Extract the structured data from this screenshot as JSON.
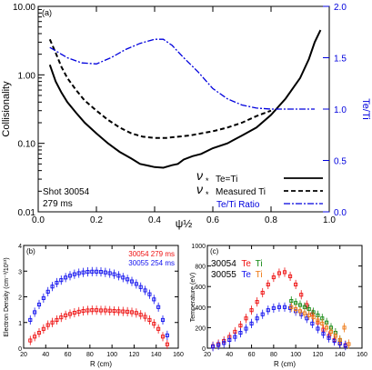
{
  "chart_data": [
    {
      "type": "line",
      "panel_label": "(a)",
      "xlabel": "ψ½",
      "ylabel": "Collisionality",
      "y2label": "Te/Ti",
      "yscale": "log",
      "xlim": [
        0.0,
        1.0
      ],
      "ylim": [
        0.01,
        10.0
      ],
      "y2lim": [
        0.0,
        2.0
      ],
      "x_ticks": [
        "0.0",
        "0.2",
        "0.4",
        "0.6",
        "0.8",
        "1.0"
      ],
      "y_ticks": [
        "0.01",
        "0.10",
        "1.00",
        "10.00"
      ],
      "y2_ticks": [
        "0.0",
        "0.5",
        "1.0",
        "1.5",
        "2.0"
      ],
      "annotation": [
        "Shot 30054",
        "279 ms"
      ],
      "legend_position": "bottom-right",
      "series": [
        {
          "name": "ν* Te=Ti",
          "color": "#000000",
          "axis": "left",
          "style": "solid",
          "x": [
            0.04,
            0.06,
            0.08,
            0.1,
            0.13,
            0.16,
            0.2,
            0.24,
            0.28,
            0.32,
            0.35,
            0.38,
            0.4,
            0.43,
            0.46,
            0.48,
            0.5,
            0.53,
            0.56,
            0.6,
            0.65,
            0.7,
            0.75,
            0.8,
            0.85,
            0.9,
            0.93,
            0.95,
            0.97
          ],
          "y": [
            1.4,
            0.8,
            0.55,
            0.4,
            0.28,
            0.2,
            0.14,
            0.1,
            0.075,
            0.06,
            0.05,
            0.047,
            0.045,
            0.044,
            0.048,
            0.05,
            0.058,
            0.065,
            0.07,
            0.085,
            0.1,
            0.13,
            0.17,
            0.26,
            0.45,
            0.9,
            1.7,
            3.0,
            4.5
          ]
        },
        {
          "name": "ν* Measured Ti",
          "color": "#000000",
          "axis": "left",
          "style": "dashed",
          "x": [
            0.04,
            0.06,
            0.08,
            0.1,
            0.13,
            0.16,
            0.2,
            0.24,
            0.28,
            0.32,
            0.36,
            0.4,
            0.44,
            0.48,
            0.52,
            0.56,
            0.6,
            0.65,
            0.7,
            0.75,
            0.8
          ],
          "y": [
            3.3,
            2.1,
            1.3,
            0.9,
            0.6,
            0.42,
            0.3,
            0.22,
            0.17,
            0.14,
            0.125,
            0.12,
            0.12,
            0.125,
            0.13,
            0.14,
            0.15,
            0.17,
            0.2,
            0.25,
            0.3
          ]
        },
        {
          "name": "Te/Ti Ratio",
          "color": "#0000dd",
          "axis": "right",
          "style": "dashdot",
          "x": [
            0.04,
            0.07,
            0.1,
            0.15,
            0.2,
            0.25,
            0.3,
            0.35,
            0.4,
            0.43,
            0.46,
            0.5,
            0.55,
            0.6,
            0.65,
            0.7,
            0.75,
            0.8,
            0.85,
            0.9,
            0.95
          ],
          "y": [
            1.6,
            1.55,
            1.5,
            1.45,
            1.44,
            1.5,
            1.58,
            1.64,
            1.68,
            1.68,
            1.62,
            1.5,
            1.36,
            1.2,
            1.1,
            1.04,
            1.01,
            1.0,
            1.0,
            1.0,
            1.0
          ]
        }
      ]
    },
    {
      "type": "scatter",
      "panel_label": "(b)",
      "xlabel": "R (cm)",
      "ylabel": "Electron Density (cm⁻³/10¹³)",
      "xlim": [
        20,
        160
      ],
      "ylim": [
        0,
        4
      ],
      "x_ticks": [
        "20",
        "40",
        "60",
        "80",
        "100",
        "120",
        "140",
        "160"
      ],
      "y_ticks": [
        "0",
        "1",
        "2",
        "3",
        "4"
      ],
      "legend_position": "top-right",
      "series": [
        {
          "name": "30054 279 ms",
          "color": "#ee1111",
          "x": [
            26,
            30,
            34,
            38,
            42,
            46,
            50,
            54,
            58,
            62,
            66,
            70,
            74,
            78,
            82,
            86,
            90,
            94,
            98,
            102,
            106,
            110,
            114,
            118,
            122,
            126,
            130,
            134,
            138,
            142,
            146,
            150
          ],
          "y": [
            0.3,
            0.45,
            0.6,
            0.75,
            0.9,
            1.0,
            1.1,
            1.2,
            1.28,
            1.33,
            1.38,
            1.42,
            1.45,
            1.47,
            1.48,
            1.48,
            1.47,
            1.47,
            1.46,
            1.45,
            1.44,
            1.43,
            1.42,
            1.4,
            1.37,
            1.3,
            1.22,
            1.1,
            0.95,
            0.75,
            0.45,
            0.15
          ]
        },
        {
          "name": "30055 254 ms",
          "color": "#1111ee",
          "x": [
            26,
            30,
            34,
            38,
            42,
            46,
            50,
            54,
            58,
            62,
            66,
            70,
            74,
            78,
            82,
            86,
            90,
            94,
            98,
            102,
            106,
            110,
            114,
            118,
            122,
            126,
            130,
            134,
            138,
            142,
            146,
            150
          ],
          "y": [
            1.1,
            1.4,
            1.7,
            1.95,
            2.2,
            2.4,
            2.55,
            2.65,
            2.75,
            2.82,
            2.88,
            2.92,
            2.95,
            2.97,
            2.98,
            2.98,
            2.97,
            2.95,
            2.92,
            2.88,
            2.82,
            2.75,
            2.68,
            2.6,
            2.5,
            2.38,
            2.25,
            2.1,
            1.9,
            1.6,
            1.1,
            0.5
          ]
        }
      ]
    },
    {
      "type": "scatter",
      "panel_label": "(c)",
      "xlabel": "R (cm)",
      "ylabel": "Temperature (eV)",
      "xlim": [
        20,
        160
      ],
      "ylim": [
        0,
        1000
      ],
      "x_ticks": [
        "20",
        "40",
        "60",
        "80",
        "100",
        "120",
        "140",
        "160"
      ],
      "y_ticks": [
        "0",
        "200",
        "400",
        "600",
        "800",
        "1000"
      ],
      "legend_position": "top-left",
      "legend": [
        {
          "shot": "30054",
          "labels": [
            {
              "text": "Te",
              "color": "#ee1111"
            },
            {
              "text": "Ti",
              "color": "#118811"
            }
          ]
        },
        {
          "shot": "30055",
          "labels": [
            {
              "text": "Te",
              "color": "#1111ee"
            },
            {
              "text": "Ti",
              "color": "#ee7711"
            }
          ]
        }
      ],
      "series": [
        {
          "name": "30054 Te",
          "color": "#ee1111",
          "x": [
            25,
            30,
            35,
            40,
            45,
            50,
            55,
            60,
            65,
            70,
            75,
            80,
            85,
            90,
            95,
            100,
            105,
            110,
            115,
            120,
            125,
            130,
            135,
            140,
            145
          ],
          "y": [
            20,
            40,
            70,
            110,
            160,
            220,
            290,
            370,
            450,
            540,
            620,
            690,
            730,
            740,
            700,
            620,
            520,
            420,
            330,
            250,
            180,
            120,
            80,
            50,
            30
          ]
        },
        {
          "name": "30054 Ti",
          "color": "#118811",
          "x": [
            96,
            100,
            104,
            108,
            112,
            116,
            120,
            124,
            128,
            132,
            136,
            140
          ],
          "y": [
            460,
            440,
            420,
            400,
            380,
            350,
            320,
            290,
            250,
            200,
            150,
            80
          ]
        },
        {
          "name": "30055 Te",
          "color": "#1111ee",
          "x": [
            25,
            30,
            35,
            40,
            45,
            50,
            55,
            60,
            65,
            70,
            75,
            80,
            85,
            90,
            95,
            100,
            105,
            110,
            115,
            120,
            125,
            130,
            135,
            140,
            145
          ],
          "y": [
            15,
            30,
            50,
            80,
            110,
            150,
            190,
            240,
            290,
            330,
            370,
            390,
            400,
            400,
            390,
            360,
            330,
            290,
            240,
            190,
            140,
            100,
            70,
            45,
            25
          ]
        },
        {
          "name": "30055 Ti",
          "color": "#ee7711",
          "x": [
            96,
            100,
            104,
            108,
            112,
            116,
            120,
            124,
            128,
            132,
            136,
            140,
            144,
            148
          ],
          "y": [
            400,
            380,
            360,
            340,
            320,
            300,
            270,
            240,
            200,
            160,
            120,
            80,
            200,
            40
          ]
        }
      ]
    }
  ]
}
